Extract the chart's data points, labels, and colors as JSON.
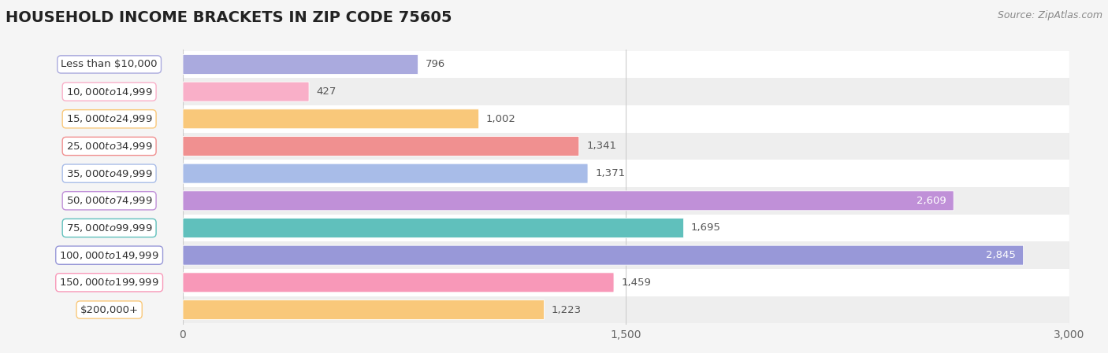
{
  "title": "HOUSEHOLD INCOME BRACKETS IN ZIP CODE 75605",
  "source": "Source: ZipAtlas.com",
  "categories": [
    "Less than $10,000",
    "$10,000 to $14,999",
    "$15,000 to $24,999",
    "$25,000 to $34,999",
    "$35,000 to $49,999",
    "$50,000 to $74,999",
    "$75,000 to $99,999",
    "$100,000 to $149,999",
    "$150,000 to $199,999",
    "$200,000+"
  ],
  "values": [
    796,
    427,
    1002,
    1341,
    1371,
    2609,
    1695,
    2845,
    1459,
    1223
  ],
  "bar_colors": [
    "#aaaade",
    "#f9afc8",
    "#f9c87a",
    "#f09090",
    "#a8bce8",
    "#c090d8",
    "#60c0bc",
    "#9898d8",
    "#f898b8",
    "#f9c87a"
  ],
  "xlim": [
    0,
    3000
  ],
  "xticks": [
    0,
    1500,
    3000
  ],
  "xtick_labels": [
    "0",
    "1,500",
    "3,000"
  ],
  "label_color_dark": "#555555",
  "label_color_light": "#ffffff",
  "background_color": "#f5f5f5",
  "title_fontsize": 14,
  "tick_fontsize": 10,
  "value_fontsize": 9.5,
  "category_fontsize": 9.5
}
